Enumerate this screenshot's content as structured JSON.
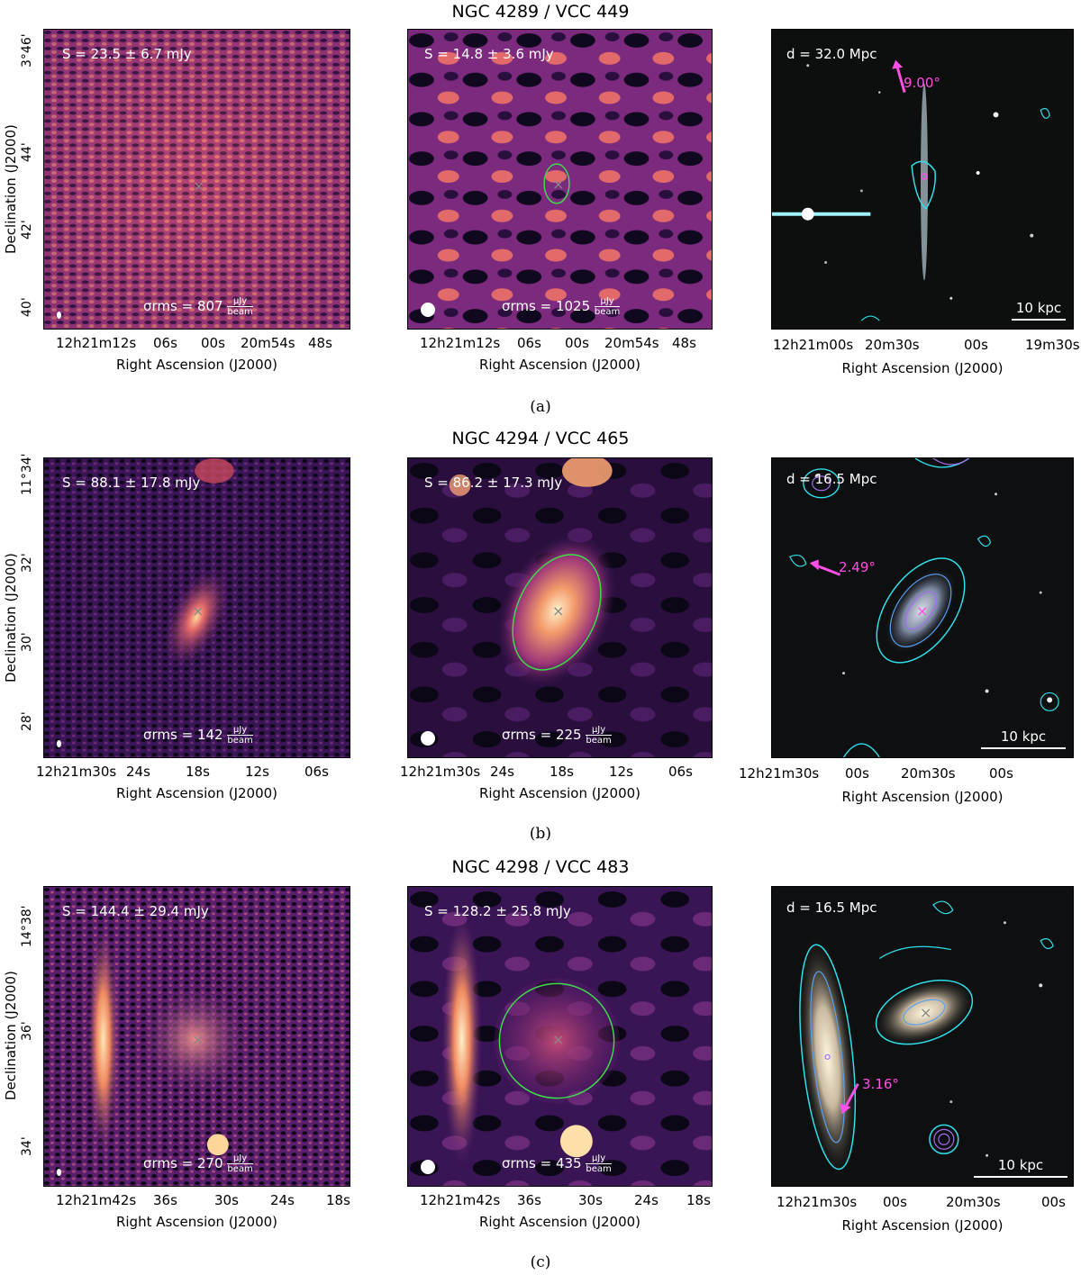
{
  "rows": [
    {
      "id": "a",
      "title": "NGC 4289 / VCC 449",
      "caption": "(a)",
      "flux_left": "S = 23.5 ± 6.7 mJy",
      "flux_mid": "S = 14.8 ± 3.6 mJy",
      "rms_left": "807",
      "rms_mid": "1025",
      "distance": "d = 32.0 Mpc",
      "angle": "9.00°",
      "scale": "10 kpc",
      "dec_ticks": [
        "3°46'",
        "44'",
        "42'",
        "40'"
      ],
      "ra_ticks_radio": [
        "12h21m12s",
        "06s",
        "00s",
        "20m54s",
        "48s"
      ],
      "ra_ticks_optical": [
        "12h21m00s",
        "20m30s",
        "00s",
        "19m30s"
      ]
    },
    {
      "id": "b",
      "title": "NGC 4294 / VCC 465",
      "caption": "(b)",
      "flux_left": "S = 88.1 ± 17.8 mJy",
      "flux_mid": "S = 86.2 ± 17.3 mJy",
      "rms_left": "142",
      "rms_mid": "225",
      "distance": "d = 16.5 Mpc",
      "angle": "2.49°",
      "scale": "10 kpc",
      "dec_ticks": [
        "11°34'",
        "32'",
        "30'",
        "28'"
      ],
      "ra_ticks_radio": [
        "12h21m30s",
        "24s",
        "18s",
        "12s",
        "06s"
      ],
      "ra_ticks_optical": [
        "12h21m30s",
        "00s",
        "20m30s",
        "00s"
      ]
    },
    {
      "id": "c",
      "title": "NGC 4298 / VCC 483",
      "caption": "(c)",
      "flux_left": "S = 144.4 ± 29.4 mJy",
      "flux_mid": "S = 128.2 ± 25.8 mJy",
      "rms_left": "270",
      "rms_mid": "435",
      "distance": "d = 16.5 Mpc",
      "angle": "3.16°",
      "scale": "10 kpc",
      "dec_ticks": [
        "14°38'",
        "36'",
        "34'"
      ],
      "ra_ticks_radio": [
        "12h21m42s",
        "36s",
        "30s",
        "24s",
        "18s"
      ],
      "ra_ticks_optical": [
        "12h21m30s",
        "00s",
        "20m30s",
        "00s"
      ]
    }
  ],
  "labels": {
    "xaxis": "Right Ascension (J2000)",
    "yaxis": "Declination (J2000)",
    "sigma": "σrms = ",
    "unit_num": "μJy",
    "unit_den": "beam"
  }
}
